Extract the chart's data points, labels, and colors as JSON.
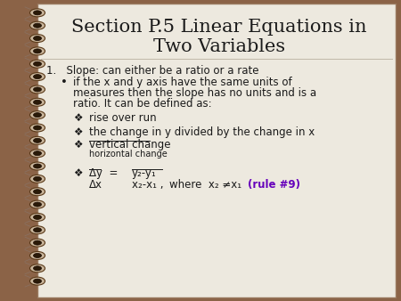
{
  "title_line1": "Section P.5 Linear Equations in",
  "title_line2": "Two Variables",
  "title_fontsize": 15,
  "title_color": "#1a1a1a",
  "bg_color": "#ede9df",
  "border_color": "#8B6347",
  "body_text_color": "#1a1a1a",
  "rule9_color": "#6600bb",
  "item1": "1.   Slope: can either be a ratio or a rate",
  "sub1": "rise over run",
  "sub2": "the change in y divided by the change in x",
  "sub3_top": "vertical change",
  "sub3_bot": "horizontal change",
  "sub4_dy": "Δy  =",
  "sub4_frac_top": "y₂-y₁",
  "sub4_dx": "Δx",
  "sub4_frac_bot": "x₂-x₁ ,",
  "sub4_where": "where  x₂ ≠x₁",
  "sub4_rule": "(rule #9)",
  "body_fontsize": 8.5,
  "small_fontsize": 7.0
}
